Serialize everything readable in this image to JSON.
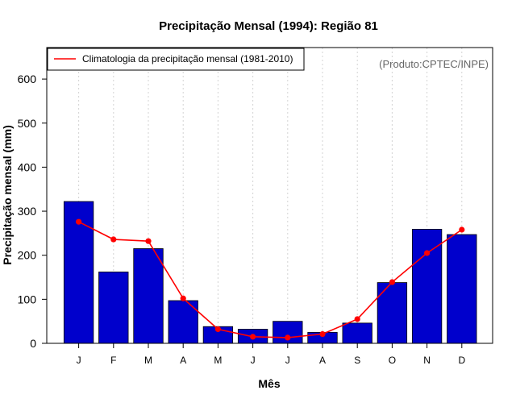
{
  "chart_data": {
    "type": "bar",
    "title": "Precipitação Mensal (1994): Região 81",
    "xlabel": "Mês",
    "ylabel": "Precipitação mensal (mm)",
    "categories": [
      "J",
      "F",
      "M",
      "A",
      "M",
      "J",
      "J",
      "A",
      "S",
      "O",
      "N",
      "D"
    ],
    "ylim": [
      0,
      660
    ],
    "yticks": [
      0,
      100,
      200,
      300,
      400,
      500,
      600
    ],
    "series": [
      {
        "name": "Precipitação mensal (1994)",
        "type": "bar",
        "color": "#0000cc",
        "values": [
          322,
          162,
          215,
          97,
          38,
          32,
          50,
          25,
          46,
          138,
          259,
          247
        ]
      },
      {
        "name": "Climatologia da precipitação mensal (1981-2010)",
        "type": "line",
        "color": "#ff0000",
        "values": [
          276,
          236,
          232,
          102,
          32,
          15,
          13,
          21,
          55,
          139,
          205,
          258
        ]
      }
    ],
    "legend": {
      "position": "top-left",
      "label": "Climatologia da precipitação mensal (1981-2010)"
    },
    "credit": "(Produto:CPTEC/INPE)",
    "grid": "vertical-dotted"
  }
}
